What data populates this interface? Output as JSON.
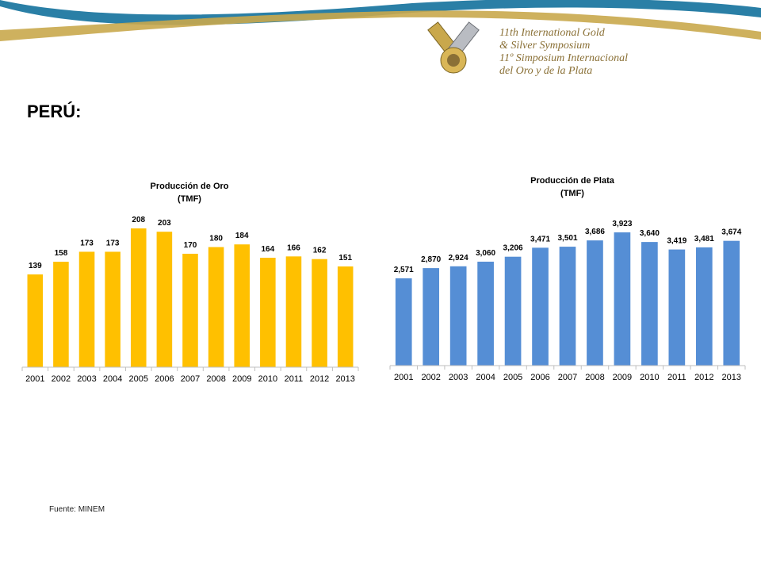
{
  "page": {
    "title": "PERÚ:",
    "source": "Fuente: MINEM"
  },
  "logo": {
    "line1": "11th International Gold",
    "line2": "& Silver Symposium",
    "line3": "11º Simposium Internacional",
    "line4": "del Oro y de la Plata"
  },
  "colors": {
    "gold_bar": "#FFC000",
    "silver_bar": "#558ED5",
    "banner_blue": "#2a7fa6",
    "banner_gold": "#c9a84c",
    "axis": "#bfbfbf",
    "text": "#000000"
  },
  "logo_icon": "crossed-gold-silver-bars-icon",
  "chart_data": [
    {
      "type": "bar",
      "title": "Producción de Oro",
      "subtitle": "(TMF)",
      "categories": [
        "2001",
        "2002",
        "2003",
        "2004",
        "2005",
        "2006",
        "2007",
        "2008",
        "2009",
        "2010",
        "2011",
        "2012",
        "2013"
      ],
      "values": [
        139,
        158,
        173,
        173,
        208,
        203,
        170,
        180,
        184,
        164,
        166,
        162,
        151
      ],
      "value_labels": [
        "139",
        "158",
        "173",
        "173",
        "208",
        "203",
        "170",
        "180",
        "184",
        "164",
        "166",
        "162",
        "151"
      ],
      "ylim": [
        0,
        208
      ],
      "grid": false,
      "color": "#FFC000"
    },
    {
      "type": "bar",
      "title": "Producción de Plata",
      "subtitle": "(TMF)",
      "categories": [
        "2001",
        "2002",
        "2003",
        "2004",
        "2005",
        "2006",
        "2007",
        "2008",
        "2009",
        "2010",
        "2011",
        "2012",
        "2013"
      ],
      "values": [
        2571,
        2870,
        2924,
        3060,
        3206,
        3471,
        3501,
        3686,
        3923,
        3640,
        3419,
        3481,
        3674
      ],
      "value_labels": [
        "2,571",
        "2,870",
        "2,924",
        "3,060",
        "3,206",
        "3,471",
        "3,501",
        "3,686",
        "3,923",
        "3,640",
        "3,419",
        "3,481",
        "3,674"
      ],
      "ylim": [
        0,
        3923
      ],
      "grid": false,
      "color": "#558ED5"
    }
  ]
}
